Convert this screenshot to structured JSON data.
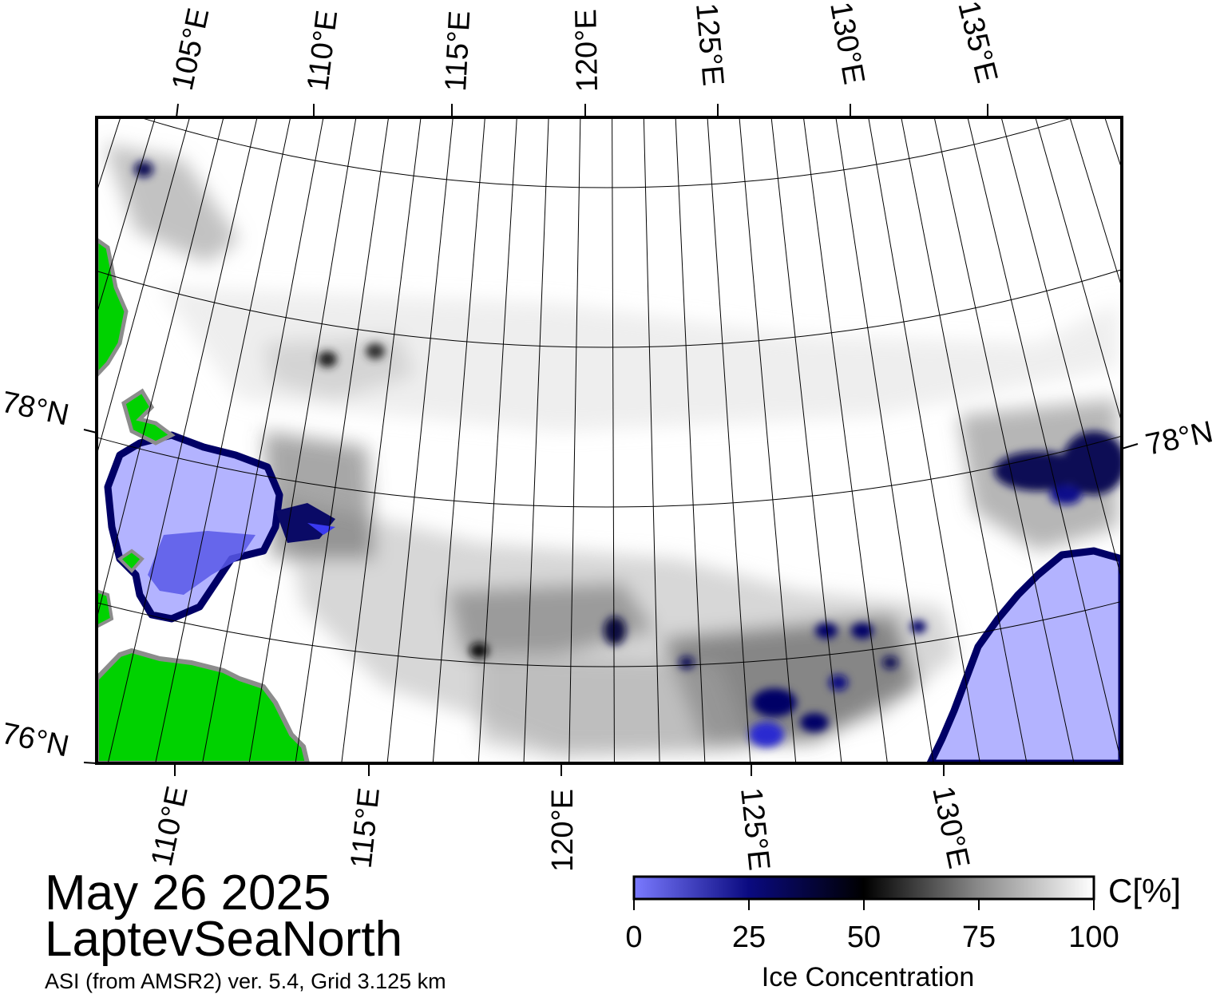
{
  "map": {
    "title_date": "May 26 2025",
    "title_region": "LaptevSeaNorth",
    "source_line": "ASI (from AMSR2) ver. 5.4,  Grid 3.125 km",
    "top_lon_labels": [
      "105°E",
      "110°E",
      "115°E",
      "120°E",
      "125°E",
      "130°E",
      "135°E"
    ],
    "bottom_lon_labels": [
      "110°E",
      "115°E",
      "120°E",
      "125°E",
      "130°E"
    ],
    "lat_labels_left": [
      "78°N",
      "76°N"
    ],
    "lat_labels_right": [
      "78°N"
    ],
    "colors": {
      "land": "#00d200",
      "open_water": "#b3b3ff",
      "ice_low": "#7070ff",
      "ice_mid": "#000066",
      "ice_high": "#ffffff",
      "coast_grey": "#8c8c8c"
    }
  },
  "colorbar": {
    "title": "Ice Concentration",
    "unit": "C[%]",
    "ticks": [
      "0",
      "25",
      "50",
      "75",
      "100"
    ],
    "range": [
      0,
      100
    ]
  }
}
